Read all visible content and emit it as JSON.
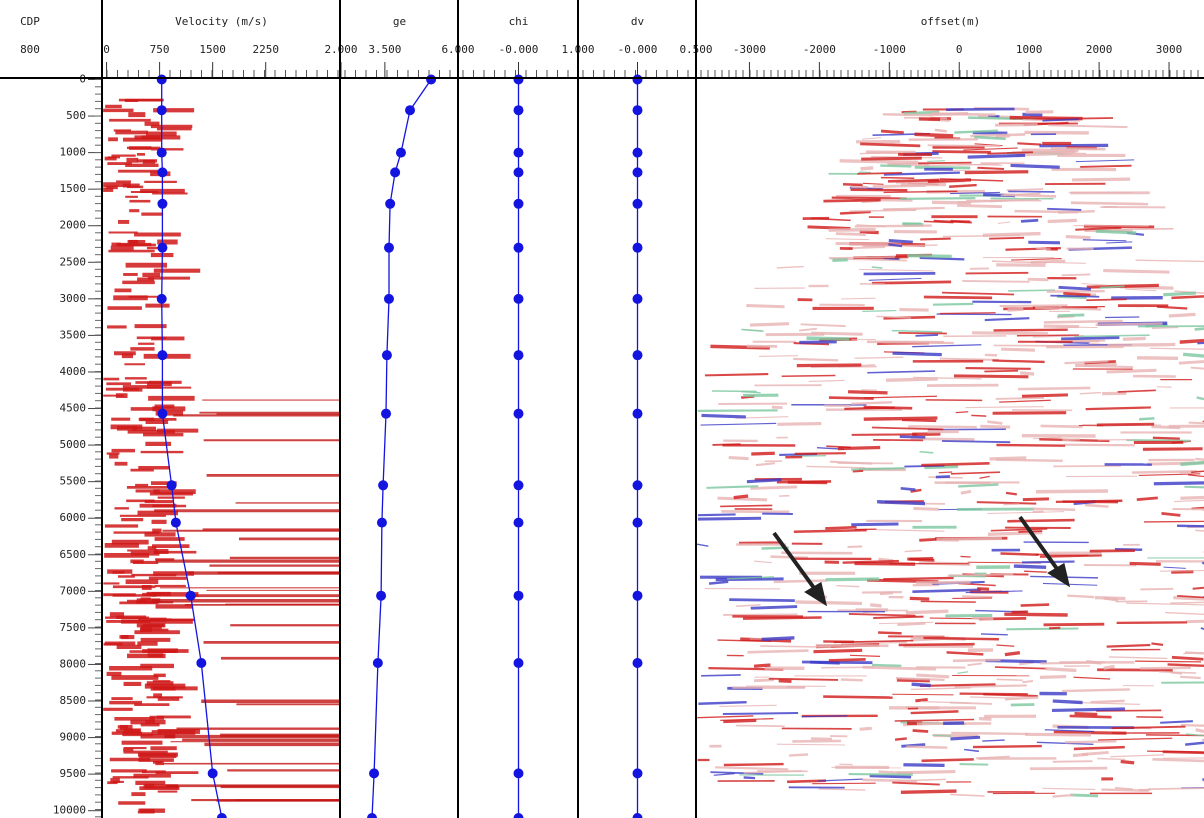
{
  "header": {
    "cdp_label": "CDP",
    "cdp": "800"
  },
  "chart_data": {
    "type": "line",
    "color": "#1414e0",
    "ylim": [
      0,
      10100
    ],
    "yticks": [
      0,
      500,
      1000,
      1500,
      2000,
      2500,
      3000,
      3500,
      4000,
      4500,
      5000,
      5500,
      6000,
      6500,
      7000,
      7500,
      8000,
      8500,
      9000,
      9500,
      10000
    ],
    "depths": [
      0,
      420,
      1000,
      1270,
      1700,
      2300,
      3000,
      3770,
      4570,
      5550,
      6060,
      7060,
      7980,
      9490,
      10100
    ],
    "panels": [
      {
        "type": "line",
        "title": "Velocity (m/s)",
        "xlim": [
          -50,
          3300
        ],
        "xticks": [
          0,
          750,
          1500,
          2250
        ],
        "values": [
          780,
          780,
          780,
          790,
          790,
          790,
          780,
          790,
          790,
          920,
          980,
          1190,
          1340,
          1500,
          1630
        ]
      },
      {
        "type": "line",
        "title": "ge",
        "xlim": [
          2,
          6
        ],
        "xticks": [
          {
            "value": 2,
            "label": "2.000"
          },
          {
            "value": 3.5,
            "label": "3.500"
          },
          {
            "value": 6,
            "label": "6.000"
          }
        ],
        "values": [
          5.08,
          4.36,
          4.05,
          3.85,
          3.68,
          3.64,
          3.64,
          3.57,
          3.54,
          3.44,
          3.4,
          3.37,
          3.26,
          3.13,
          3.06
        ]
      },
      {
        "type": "line",
        "title": "chi",
        "xlim": [
          -1,
          1
        ],
        "xticks": [
          {
            "value": 0,
            "label": "-0.000"
          },
          {
            "value": 1,
            "label": "1.000"
          }
        ],
        "values": [
          0,
          0,
          0,
          0,
          0,
          0,
          0,
          0,
          0,
          0,
          0,
          0,
          0,
          0,
          0
        ]
      },
      {
        "type": "line",
        "title": "dv",
        "xlim": [
          -0.5,
          0.5
        ],
        "xticks": [
          {
            "value": 0,
            "label": "-0.000"
          },
          {
            "value": 0.5,
            "label": "0.500"
          }
        ],
        "values": [
          0,
          0,
          0,
          0,
          0,
          0,
          0,
          0,
          0,
          0,
          0,
          0,
          0,
          0,
          0
        ]
      },
      {
        "type": "gather",
        "title": "offset(m)",
        "xlim": [
          -3750,
          3500
        ],
        "xticks": [
          -3000,
          -2000,
          -1000,
          0,
          1000,
          2000,
          3000
        ]
      }
    ]
  }
}
